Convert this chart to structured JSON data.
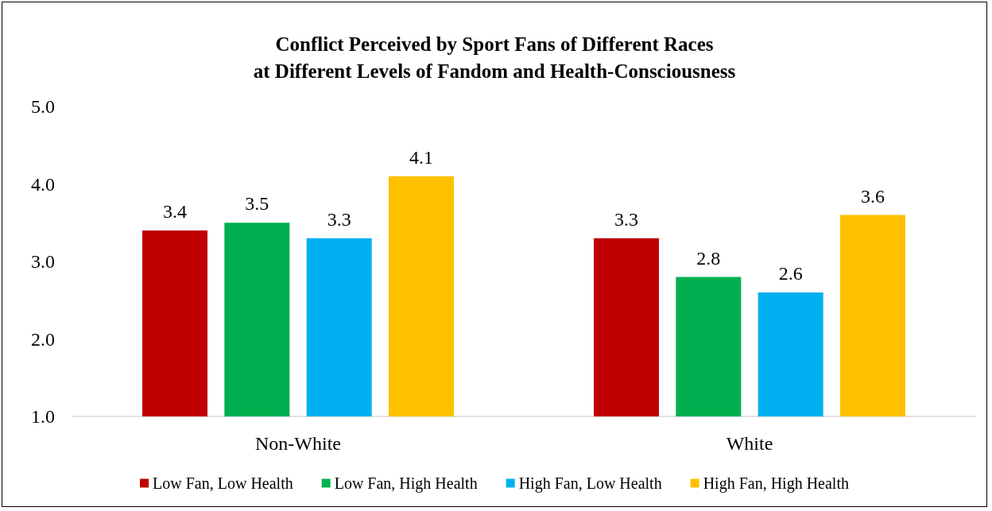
{
  "chart_data": {
    "type": "bar",
    "title": "Conflict Perceived by Sport Fans of Different Races\nat Different Levels of Fandom and Health-Consciousness",
    "categories": [
      "Non-White",
      "White"
    ],
    "series": [
      {
        "name": "Low Fan, Low Health",
        "color": "#c00000",
        "values": [
          3.4,
          3.3
        ]
      },
      {
        "name": "Low Fan, High Health",
        "color": "#00b050",
        "values": [
          3.5,
          2.8
        ]
      },
      {
        "name": "High Fan, Low Health",
        "color": "#00b0f0",
        "values": [
          3.3,
          2.6
        ]
      },
      {
        "name": "High Fan, High Health",
        "color": "#ffc000",
        "values": [
          4.1,
          3.6
        ]
      }
    ],
    "ylim": [
      1,
      5
    ],
    "yticks": [
      {
        "value": 1,
        "label": "1.0"
      },
      {
        "value": 2,
        "label": "2.0"
      },
      {
        "value": 3,
        "label": "3.0"
      },
      {
        "value": 4,
        "label": "4.0"
      },
      {
        "value": 5,
        "label": "5.0"
      }
    ],
    "data_labels": true,
    "grid": false,
    "legend": "bottom"
  }
}
